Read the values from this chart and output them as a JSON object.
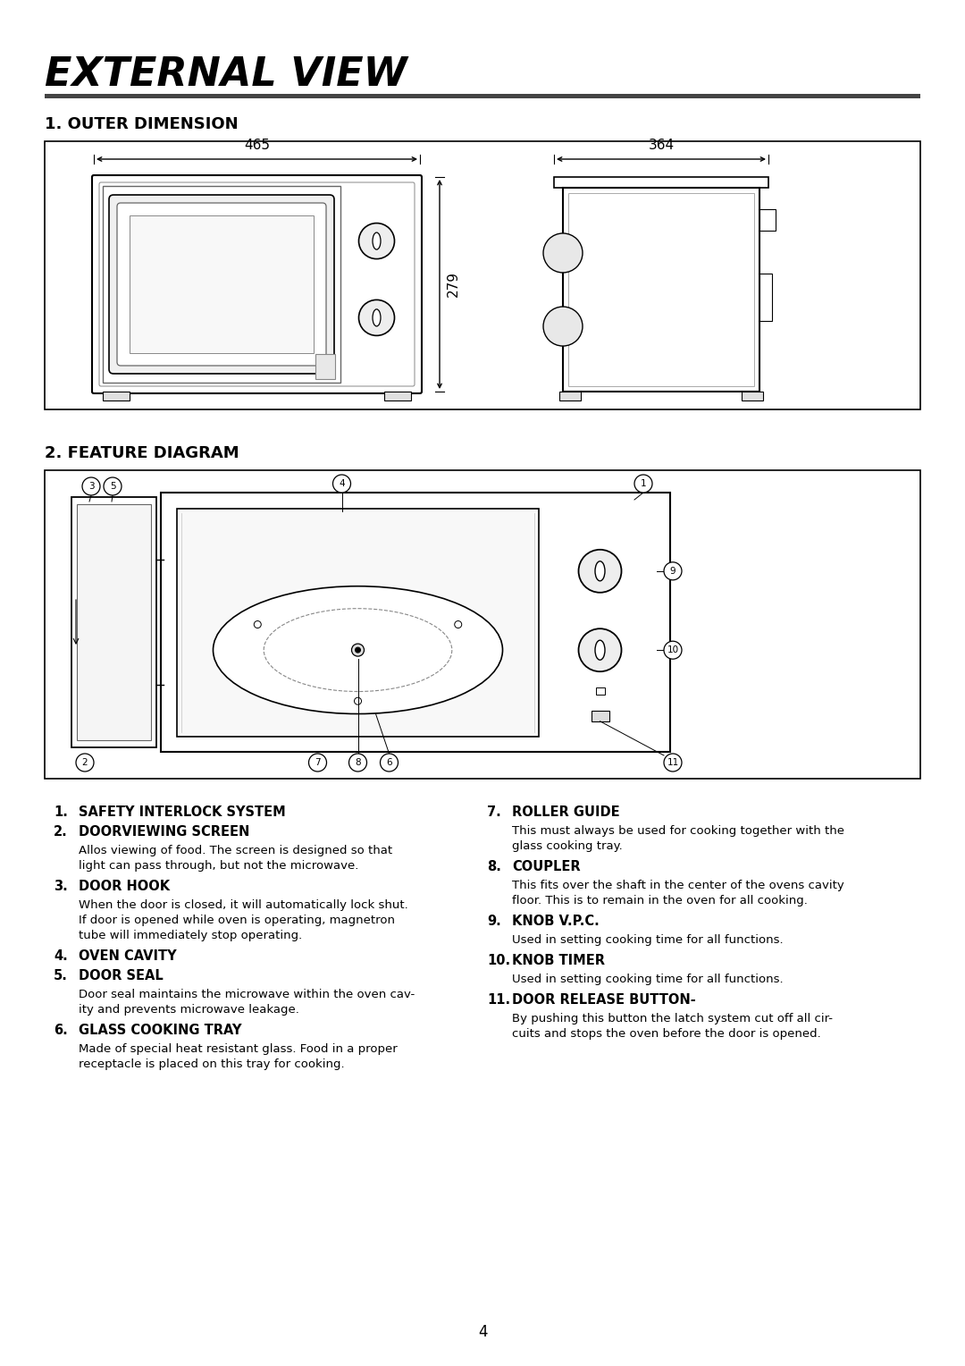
{
  "title": "EXTERNAL VIEW",
  "section1_title": "1. OUTER DIMENSION",
  "section2_title": "2. FEATURE DIAGRAM",
  "dim_width": "465",
  "dim_depth": "364",
  "dim_height": "279",
  "features": [
    {
      "num": "1.",
      "bold": "SAFETY INTERLOCK SYSTEM",
      "text": ""
    },
    {
      "num": "2.",
      "bold": "DOORVIEWING SCREEN",
      "text": "Allos viewing of food. The screen is designed so that\nlight can pass through, but not the microwave."
    },
    {
      "num": "3.",
      "bold": "DOOR HOOK",
      "text": "When the door is closed, it will automatically lock shut.\nIf door is opened while oven is operating, magnetron\ntube will immediately stop operating."
    },
    {
      "num": "4.",
      "bold": "OVEN CAVITY",
      "text": ""
    },
    {
      "num": "5.",
      "bold": "DOOR SEAL",
      "text": "Door seal maintains the microwave within the oven cav-\nity and prevents microwave leakage."
    },
    {
      "num": "6.",
      "bold": "GLASS COOKING TRAY",
      "text": "Made of special heat resistant glass. Food in a proper\nreceptacle is placed on this tray for cooking."
    },
    {
      "num": "7.",
      "bold": "ROLLER GUIDE",
      "text": "This must always be used for cooking together with the\nglass cooking tray."
    },
    {
      "num": "8.",
      "bold": "COUPLER",
      "text": "This fits over the shaft in the center of the ovens cavity\nfloor. This is to remain in the oven for all cooking."
    },
    {
      "num": "9.",
      "bold": "KNOB V.P.C.",
      "text": "Used in setting cooking time for all functions."
    },
    {
      "num": "10.",
      "bold": "KNOB TIMER",
      "text": "Used in setting cooking time for all functions."
    },
    {
      "num": "11.",
      "bold": "DOOR RELEASE BUTTON-",
      "text": "By pushing this button the latch system cut off all cir-\ncuits and stops the oven before the door is opened."
    }
  ],
  "page_num": "4",
  "bg_color": "#ffffff",
  "text_color": "#000000",
  "separator_color": "#555555"
}
